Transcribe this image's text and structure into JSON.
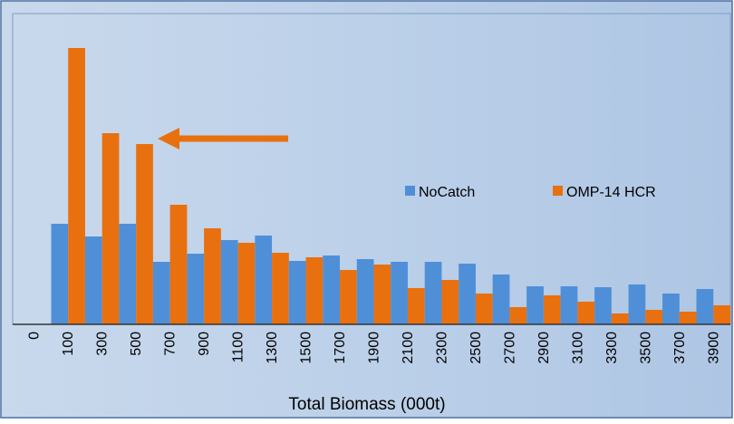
{
  "chart_data": {
    "type": "bar",
    "x_label": "Total Biomass (000t)",
    "categories": [
      "0",
      "100",
      "300",
      "500",
      "700",
      "900",
      "1100",
      "1300",
      "1500",
      "1700",
      "1900",
      "2100",
      "2300",
      "2500",
      "2700",
      "2900",
      "3100",
      "3300",
      "3500",
      "3700",
      "3900"
    ],
    "series": [
      {
        "name": "NoCatch",
        "color": "#4f8fd8",
        "values": [
          null,
          111,
          97,
          111,
          69,
          78,
          93,
          98,
          70,
          76,
          72,
          69,
          69,
          67,
          55,
          42,
          42,
          41,
          44,
          34,
          39
        ]
      },
      {
        "name": "OMP-14 HCR",
        "color": "#e8700f",
        "values": [
          null,
          305,
          211,
          199,
          132,
          106,
          90,
          79,
          74,
          60,
          66,
          40,
          49,
          34,
          19,
          32,
          25,
          12,
          16,
          14,
          21
        ]
      }
    ],
    "ylim": [
      0,
      343
    ]
  }
}
